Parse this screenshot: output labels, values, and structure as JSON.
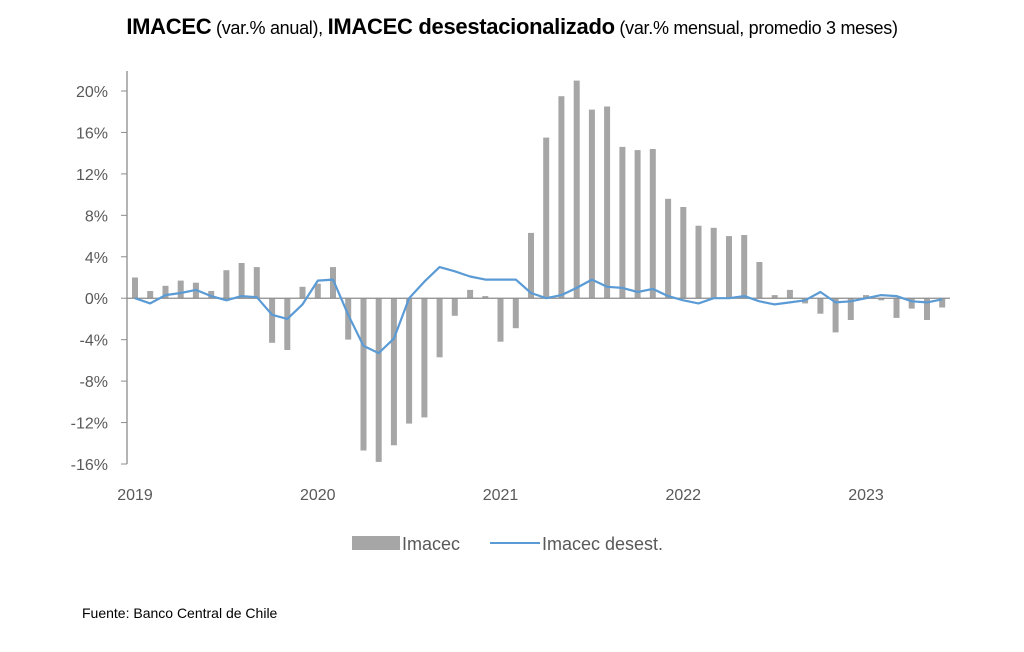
{
  "title": {
    "part1_bold": "IMACEC",
    "part1_normal": " (var.% anual), ",
    "part2_bold": "IMACEC desestacionalizado",
    "part2_normal": " (var.% mensual, promedio 3 meses)"
  },
  "source": "Fuente: Banco Central de Chile",
  "colors": {
    "bar": "#a6a6a6",
    "line": "#5b9bd5",
    "axis": "#8c8c8c",
    "text": "#595959"
  },
  "chart_data": {
    "type": "bar+line",
    "title": "IMACEC (var.% anual), IMACEC desestacionalizado (var.% mensual, promedio 3 meses)",
    "xlabel": "",
    "ylabel": "",
    "ylim": [
      -16,
      20
    ],
    "yticks": [
      20,
      16,
      12,
      8,
      4,
      0,
      -4,
      -8,
      -12,
      -16
    ],
    "ytick_labels": [
      "20%",
      "16%",
      "12%",
      "8%",
      "4%",
      "0%",
      "-4%",
      "-8%",
      "-12%",
      "-16%"
    ],
    "xtick_labels": [
      "2019",
      "2020",
      "2021",
      "2022",
      "2023"
    ],
    "grid": false,
    "legend": "bottom",
    "x": [
      "2019-01",
      "2019-02",
      "2019-03",
      "2019-04",
      "2019-05",
      "2019-06",
      "2019-07",
      "2019-08",
      "2019-09",
      "2019-10",
      "2019-11",
      "2019-12",
      "2020-01",
      "2020-02",
      "2020-03",
      "2020-04",
      "2020-05",
      "2020-06",
      "2020-07",
      "2020-08",
      "2020-09",
      "2020-10",
      "2020-11",
      "2020-12",
      "2021-01",
      "2021-02",
      "2021-03",
      "2021-04",
      "2021-05",
      "2021-06",
      "2021-07",
      "2021-08",
      "2021-09",
      "2021-10",
      "2021-11",
      "2021-12",
      "2022-01",
      "2022-02",
      "2022-03",
      "2022-04",
      "2022-05",
      "2022-06",
      "2022-07",
      "2022-08",
      "2022-09",
      "2022-10",
      "2022-11",
      "2022-12",
      "2023-01",
      "2023-02",
      "2023-03",
      "2023-04",
      "2023-05",
      "2023-06"
    ],
    "series": [
      {
        "name": "Imacec",
        "type": "bar",
        "values": [
          2.0,
          0.7,
          1.2,
          1.7,
          1.5,
          0.7,
          2.7,
          3.4,
          3.0,
          -4.3,
          -5.0,
          1.1,
          1.4,
          3.0,
          -4.0,
          -14.7,
          -15.8,
          -14.2,
          -12.1,
          -11.5,
          -5.7,
          -1.7,
          0.8,
          0.2,
          -4.2,
          -2.9,
          6.3,
          15.5,
          19.5,
          21.0,
          18.2,
          18.5,
          14.6,
          14.3,
          14.4,
          9.6,
          8.8,
          7.0,
          6.8,
          6.0,
          6.1,
          3.5,
          0.3,
          0.8,
          -0.5,
          -1.5,
          -3.3,
          -2.1,
          0.3,
          -0.2,
          -1.9,
          -1.0,
          -2.1,
          -0.9
        ]
      },
      {
        "name": "Imacec desest.",
        "type": "line",
        "values": [
          0.0,
          -0.5,
          0.3,
          0.5,
          0.8,
          0.2,
          -0.2,
          0.2,
          0.1,
          -1.6,
          -2.0,
          -0.6,
          1.7,
          1.8,
          -1.6,
          -4.6,
          -5.3,
          -3.9,
          0.0,
          1.6,
          3.0,
          2.6,
          2.1,
          1.8,
          1.8,
          1.8,
          0.5,
          0.0,
          0.3,
          1.0,
          1.8,
          1.1,
          1.0,
          0.6,
          0.9,
          0.2,
          -0.2,
          -0.5,
          0.0,
          0.0,
          0.2,
          -0.3,
          -0.6,
          -0.4,
          -0.2,
          0.6,
          -0.4,
          -0.3,
          0.0,
          0.3,
          0.2,
          -0.3,
          -0.4,
          -0.1
        ]
      }
    ]
  }
}
